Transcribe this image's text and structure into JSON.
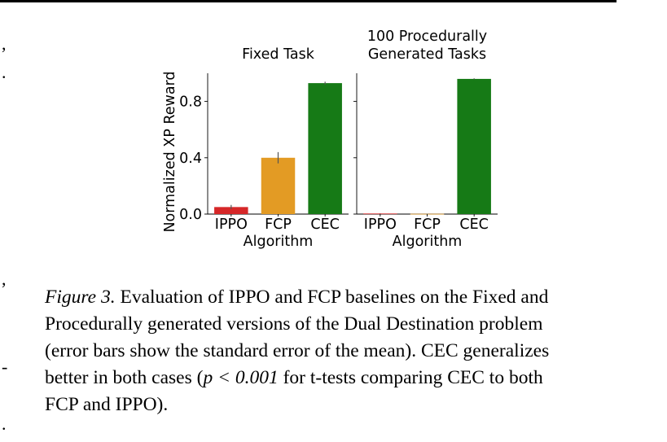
{
  "chart_data": [
    {
      "type": "bar",
      "title": "Fixed Task",
      "xlabel": "Algorithm",
      "ylabel": "Normalized XP Reward",
      "categories": [
        "IPPO",
        "FCP",
        "CEC"
      ],
      "values": [
        0.05,
        0.4,
        0.93
      ],
      "error": [
        0.015,
        0.04,
        0.01
      ],
      "colors": [
        "#d62728",
        "#e39b24",
        "#167a16"
      ],
      "ylim": [
        0,
        1.0
      ],
      "yticks": [
        "0.0",
        "0.4",
        "0.8"
      ],
      "grid": false,
      "legend": "none"
    },
    {
      "type": "bar",
      "title": "100 Procedurally\nGenerated Tasks",
      "xlabel": "Algorithm",
      "ylabel": "",
      "categories": [
        "IPPO",
        "FCP",
        "CEC"
      ],
      "values": [
        0.004,
        0.002,
        0.96
      ],
      "error": [
        0.001,
        0.001,
        0.004
      ],
      "colors": [
        "#d62728",
        "#e39b24",
        "#167a16"
      ],
      "ylim": [
        0,
        1.0
      ],
      "yticks": [],
      "grid": false,
      "legend": "none"
    }
  ],
  "caption": {
    "label": "Figure 3.",
    "lines": [
      " Evaluation of IPPO and FCP baselines on the Fixed and",
      "Procedurally generated versions of the Dual Destination problem",
      "(error bars show the standard error of the mean). CEC generalizes",
      "FCP and IPPO)."
    ],
    "line4_before": "better in both cases (",
    "line4_math": "p < 0.001",
    "line4_after": " for t-tests comparing CEC to both"
  },
  "margin_marks": [
    ",",
    ".",
    ",",
    "-",
    "."
  ]
}
